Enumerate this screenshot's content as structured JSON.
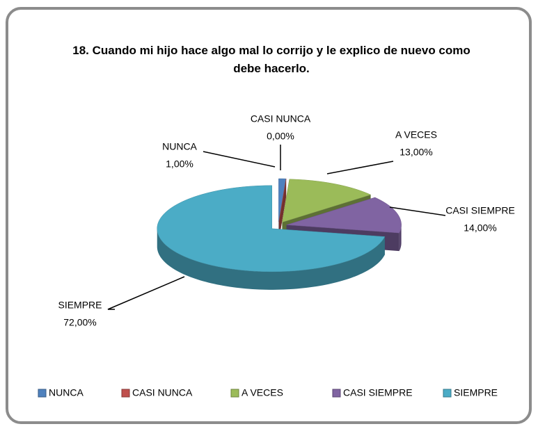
{
  "chart_data": {
    "type": "pie",
    "title": "18. Cuando mi hijo hace algo mal lo corrijo y le explico de nuevo como debe hacerlo.",
    "categories": [
      "NUNCA",
      "CASI NUNCA",
      "A VECES",
      "CASI SIEMPRE",
      "SIEMPRE"
    ],
    "values": [
      1,
      0,
      13,
      14,
      72
    ],
    "value_labels": [
      "1,00%",
      "0,00%",
      "13,00%",
      "14,00%",
      "72,00%"
    ],
    "colors": [
      "#4f81bd",
      "#c0504d",
      "#9bbb59",
      "#8064a2",
      "#4bacc6"
    ],
    "legend": "bottom"
  }
}
